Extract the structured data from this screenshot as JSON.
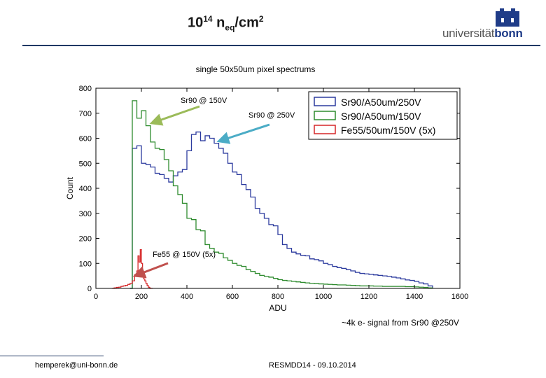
{
  "slide": {
    "title_base": "10",
    "title_exp": "14",
    "title_n": " n",
    "title_sub": "eq",
    "title_unit": "/cm",
    "title_unit_exp": "2",
    "logo_text_a": "universität",
    "logo_text_b": "bonn",
    "note": "~4k e- signal from Sr90 @250V",
    "footer_left": "hemperek@uni-bonn.de",
    "footer_center": "RESMDD14 - 09.10.2014"
  },
  "chart_data": {
    "type": "line",
    "step": true,
    "title": "single 50x50um pixel spectrums",
    "xlabel": "ADU",
    "ylabel": "Count",
    "xlim": [
      0,
      1600
    ],
    "ylim": [
      0,
      800
    ],
    "xticks": [
      0,
      200,
      400,
      600,
      800,
      1000,
      1200,
      1400,
      1600
    ],
    "yticks": [
      0,
      100,
      200,
      300,
      400,
      500,
      600,
      700,
      800
    ],
    "legend_position": "top-right",
    "series": [
      {
        "name": "Sr90/A50um/250V",
        "color": "#2b3a9e",
        "edges": [
          150,
          160,
          180,
          200,
          220,
          240,
          260,
          280,
          300,
          320,
          340,
          360,
          380,
          400,
          420,
          440,
          460,
          480,
          500,
          520,
          540,
          560,
          580,
          600,
          620,
          640,
          660,
          680,
          700,
          720,
          740,
          760,
          780,
          800,
          820,
          840,
          860,
          880,
          900,
          920,
          940,
          960,
          980,
          1000,
          1020,
          1040,
          1060,
          1080,
          1100,
          1120,
          1140,
          1160,
          1180,
          1200,
          1220,
          1240,
          1260,
          1280,
          1300,
          1320,
          1340,
          1360,
          1380,
          1400,
          1420,
          1440,
          1460,
          1480
        ],
        "values": [
          0,
          560,
          570,
          500,
          495,
          485,
          460,
          455,
          440,
          425,
          450,
          465,
          475,
          550,
          615,
          625,
          590,
          610,
          600,
          580,
          560,
          540,
          500,
          465,
          455,
          415,
          395,
          365,
          320,
          300,
          280,
          255,
          250,
          215,
          175,
          160,
          145,
          138,
          132,
          130,
          118,
          115,
          110,
          100,
          95,
          88,
          83,
          80,
          75,
          70,
          64,
          60,
          58,
          56,
          54,
          52,
          50,
          48,
          45,
          42,
          38,
          34,
          32,
          28,
          22,
          18,
          10
        ]
      },
      {
        "name": "Sr90/A50um/150V",
        "color": "#2e8b2e",
        "edges": [
          150,
          160,
          180,
          200,
          220,
          240,
          260,
          280,
          300,
          320,
          340,
          360,
          380,
          400,
          420,
          440,
          460,
          480,
          500,
          520,
          540,
          560,
          580,
          600,
          620,
          640,
          660,
          680,
          700,
          720,
          740,
          760,
          780,
          800,
          820,
          840,
          860,
          880,
          900,
          920,
          940,
          960,
          980,
          1000,
          1020,
          1040,
          1060,
          1080,
          1100,
          1120,
          1140,
          1160,
          1180,
          1200,
          1220,
          1240,
          1260,
          1280,
          1300,
          1320,
          1340,
          1360,
          1380,
          1400,
          1420,
          1440,
          1460,
          1480
        ],
        "values": [
          0,
          750,
          680,
          710,
          650,
          585,
          560,
          555,
          515,
          470,
          410,
          375,
          340,
          280,
          275,
          235,
          230,
          175,
          160,
          145,
          140,
          122,
          112,
          100,
          92,
          88,
          75,
          68,
          60,
          52,
          48,
          45,
          40,
          35,
          32,
          30,
          28,
          26,
          24,
          22,
          20,
          19,
          18,
          17,
          16,
          15,
          14,
          14,
          13,
          12,
          11,
          10,
          10,
          10,
          9,
          9,
          8,
          8,
          8,
          8,
          8,
          7,
          7,
          6,
          5,
          4,
          2
        ]
      },
      {
        "name": "Fe55/50um/150V (5x)",
        "color": "#d62728",
        "edges": [
          70,
          80,
          90,
          100,
          110,
          120,
          130,
          140,
          150,
          160,
          170,
          180,
          185,
          190,
          195,
          200,
          205,
          210,
          215,
          220,
          225,
          230,
          235,
          240,
          250
        ],
        "values": [
          0,
          2,
          4,
          5,
          8,
          10,
          12,
          16,
          20,
          30,
          55,
          70,
          130,
          105,
          155,
          100,
          48,
          38,
          30,
          20,
          12,
          5,
          2,
          0
        ]
      }
    ],
    "annotations": [
      {
        "text": "Sr90 @ 150V",
        "arrow_color": "#9bbb59"
      },
      {
        "text": "Sr90 @ 250V",
        "arrow_color": "#4bacc6"
      },
      {
        "text": "Fe55 @ 150V (5x)",
        "arrow_color": "#c0504d"
      }
    ]
  }
}
